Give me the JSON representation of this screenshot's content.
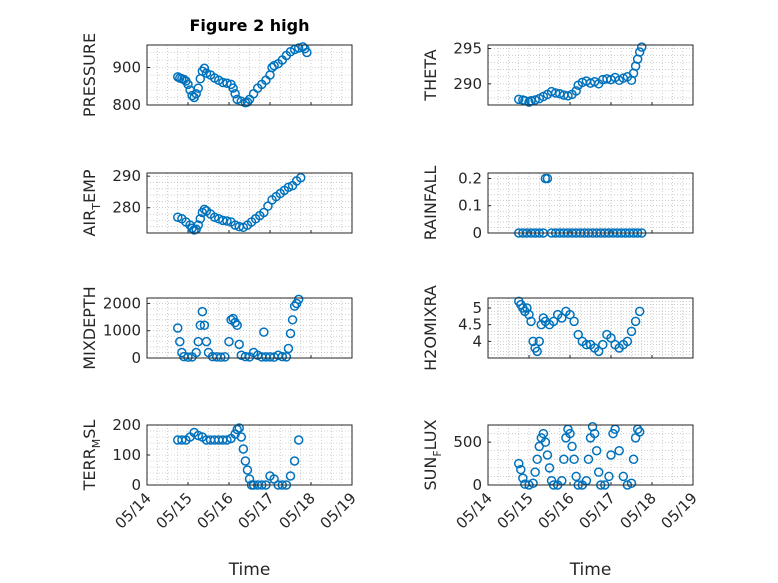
{
  "figure_title": "Figure 2 high",
  "marker_color": "#0072bd",
  "chart_data": [
    {
      "type": "scatter",
      "title": "Figure 2 high",
      "ylabel": "PRESSURE",
      "ylim": [
        800,
        960
      ],
      "yticks": [
        800,
        900
      ],
      "xlim": [
        "05/14",
        "05/19"
      ],
      "xticks": [
        "05/14",
        "05/15",
        "05/16",
        "05/17",
        "05/18",
        "05/19"
      ],
      "show_xticklabels": false,
      "xlabel": "",
      "grid": true,
      "points": [
        [
          14.75,
          875
        ],
        [
          14.8,
          872
        ],
        [
          14.85,
          870
        ],
        [
          14.9,
          868
        ],
        [
          14.95,
          864
        ],
        [
          15.0,
          855
        ],
        [
          15.05,
          840
        ],
        [
          15.1,
          825
        ],
        [
          15.15,
          820
        ],
        [
          15.2,
          830
        ],
        [
          15.25,
          845
        ],
        [
          15.3,
          870
        ],
        [
          15.35,
          890
        ],
        [
          15.4,
          898
        ],
        [
          15.45,
          885
        ],
        [
          15.55,
          880
        ],
        [
          15.65,
          872
        ],
        [
          15.75,
          866
        ],
        [
          15.85,
          860
        ],
        [
          15.95,
          858
        ],
        [
          16.05,
          855
        ],
        [
          16.1,
          845
        ],
        [
          16.15,
          830
        ],
        [
          16.2,
          815
        ],
        [
          16.3,
          810
        ],
        [
          16.4,
          806
        ],
        [
          16.45,
          808
        ],
        [
          16.5,
          815
        ],
        [
          16.6,
          830
        ],
        [
          16.7,
          845
        ],
        [
          16.8,
          855
        ],
        [
          16.9,
          866
        ],
        [
          17.0,
          880
        ],
        [
          17.05,
          900
        ],
        [
          17.1,
          905
        ],
        [
          17.2,
          910
        ],
        [
          17.3,
          920
        ],
        [
          17.4,
          932
        ],
        [
          17.5,
          942
        ],
        [
          17.6,
          948
        ],
        [
          17.7,
          952
        ],
        [
          17.8,
          955
        ],
        [
          17.85,
          950
        ],
        [
          17.9,
          940
        ]
      ]
    },
    {
      "type": "scatter",
      "ylabel": "THETA",
      "ylim": [
        287,
        295.5
      ],
      "yticks": [
        290,
        295
      ],
      "xlim": [
        "05/14",
        "05/19"
      ],
      "xticks": [
        "05/14",
        "05/15",
        "05/16",
        "05/17",
        "05/18",
        "05/19"
      ],
      "show_xticklabels": false,
      "xlabel": "",
      "grid": true,
      "points": [
        [
          14.75,
          287.8
        ],
        [
          14.85,
          287.7
        ],
        [
          14.9,
          287.6
        ],
        [
          15.0,
          287.4
        ],
        [
          15.05,
          287.6
        ],
        [
          15.15,
          287.7
        ],
        [
          15.25,
          287.9
        ],
        [
          15.35,
          288.2
        ],
        [
          15.45,
          288.5
        ],
        [
          15.55,
          288.9
        ],
        [
          15.65,
          288.7
        ],
        [
          15.75,
          288.6
        ],
        [
          15.85,
          288.4
        ],
        [
          15.95,
          288.3
        ],
        [
          16.05,
          288.5
        ],
        [
          16.15,
          289.0
        ],
        [
          16.2,
          289.8
        ],
        [
          16.3,
          290.2
        ],
        [
          16.4,
          290.4
        ],
        [
          16.5,
          290.1
        ],
        [
          16.6,
          290.3
        ],
        [
          16.7,
          290.0
        ],
        [
          16.8,
          290.6
        ],
        [
          16.9,
          290.7
        ],
        [
          17.0,
          290.6
        ],
        [
          17.1,
          290.9
        ],
        [
          17.2,
          290.5
        ],
        [
          17.3,
          290.8
        ],
        [
          17.4,
          291.0
        ],
        [
          17.5,
          290.5
        ],
        [
          17.55,
          291.5
        ],
        [
          17.6,
          292.5
        ],
        [
          17.65,
          293.5
        ],
        [
          17.7,
          294.5
        ],
        [
          17.75,
          295.2
        ]
      ]
    },
    {
      "type": "scatter",
      "ylabel": "AIR_TEMP",
      "ylim": [
        272,
        291
      ],
      "yticks": [
        280,
        290
      ],
      "xlim": [
        "05/14",
        "05/19"
      ],
      "xticks": [
        "05/14",
        "05/15",
        "05/16",
        "05/17",
        "05/18",
        "05/19"
      ],
      "show_xticklabels": false,
      "xlabel": "",
      "grid": true,
      "points": [
        [
          14.75,
          277
        ],
        [
          14.85,
          276.5
        ],
        [
          14.95,
          275.5
        ],
        [
          15.05,
          274.5
        ],
        [
          15.1,
          273.5
        ],
        [
          15.15,
          273
        ],
        [
          15.2,
          273.2
        ],
        [
          15.25,
          274.5
        ],
        [
          15.3,
          276.5
        ],
        [
          15.35,
          278.5
        ],
        [
          15.4,
          279.5
        ],
        [
          15.45,
          279
        ],
        [
          15.55,
          278
        ],
        [
          15.65,
          277
        ],
        [
          15.75,
          276.5
        ],
        [
          15.85,
          276
        ],
        [
          15.95,
          275.8
        ],
        [
          16.05,
          275.5
        ],
        [
          16.15,
          274.5
        ],
        [
          16.25,
          274
        ],
        [
          16.35,
          273.8
        ],
        [
          16.45,
          274.5
        ],
        [
          16.55,
          275.5
        ],
        [
          16.65,
          276.5
        ],
        [
          16.75,
          277.5
        ],
        [
          16.85,
          278.5
        ],
        [
          16.95,
          280.5
        ],
        [
          17.05,
          282.5
        ],
        [
          17.15,
          283.5
        ],
        [
          17.25,
          284.5
        ],
        [
          17.35,
          285.5
        ],
        [
          17.45,
          286.5
        ],
        [
          17.55,
          287
        ],
        [
          17.65,
          288.5
        ],
        [
          17.75,
          289.5
        ]
      ]
    },
    {
      "type": "scatter",
      "ylabel": "RAINFALL",
      "ylim": [
        0,
        0.22
      ],
      "yticks": [
        0,
        0.1,
        0.2
      ],
      "xlim": [
        "05/14",
        "05/19"
      ],
      "xticks": [
        "05/14",
        "05/15",
        "05/16",
        "05/17",
        "05/18",
        "05/19"
      ],
      "show_xticklabels": false,
      "xlabel": "",
      "grid": true,
      "points": [
        [
          14.75,
          0
        ],
        [
          14.85,
          0
        ],
        [
          14.95,
          0
        ],
        [
          15.05,
          0
        ],
        [
          15.15,
          0
        ],
        [
          15.25,
          0
        ],
        [
          15.35,
          0
        ],
        [
          15.4,
          0.2
        ],
        [
          15.45,
          0.2
        ],
        [
          15.55,
          0
        ],
        [
          15.65,
          0
        ],
        [
          15.75,
          0
        ],
        [
          15.85,
          0
        ],
        [
          15.95,
          0
        ],
        [
          16.05,
          0
        ],
        [
          16.15,
          0
        ],
        [
          16.25,
          0
        ],
        [
          16.35,
          0
        ],
        [
          16.45,
          0
        ],
        [
          16.55,
          0
        ],
        [
          16.65,
          0
        ],
        [
          16.75,
          0
        ],
        [
          16.85,
          0
        ],
        [
          16.95,
          0
        ],
        [
          17.05,
          0
        ],
        [
          17.15,
          0
        ],
        [
          17.25,
          0
        ],
        [
          17.35,
          0
        ],
        [
          17.45,
          0
        ],
        [
          17.55,
          0
        ],
        [
          17.65,
          0
        ],
        [
          17.75,
          0
        ]
      ]
    },
    {
      "type": "scatter",
      "ylabel": "MIXDEPTH",
      "ylim": [
        0,
        2200
      ],
      "yticks": [
        0,
        1000,
        2000
      ],
      "xlim": [
        "05/14",
        "05/19"
      ],
      "xticks": [
        "05/14",
        "05/15",
        "05/16",
        "05/17",
        "05/18",
        "05/19"
      ],
      "show_xticklabels": false,
      "xlabel": "",
      "grid": true,
      "points": [
        [
          14.75,
          1100
        ],
        [
          14.8,
          600
        ],
        [
          14.85,
          200
        ],
        [
          14.9,
          50
        ],
        [
          15.0,
          30
        ],
        [
          15.1,
          40
        ],
        [
          15.2,
          200
        ],
        [
          15.25,
          600
        ],
        [
          15.3,
          1200
        ],
        [
          15.35,
          1700
        ],
        [
          15.4,
          1200
        ],
        [
          15.45,
          600
        ],
        [
          15.5,
          200
        ],
        [
          15.6,
          50
        ],
        [
          15.7,
          40
        ],
        [
          15.8,
          30
        ],
        [
          15.9,
          40
        ],
        [
          16.0,
          600
        ],
        [
          16.05,
          1400
        ],
        [
          16.1,
          1450
        ],
        [
          16.15,
          1300
        ],
        [
          16.2,
          1200
        ],
        [
          16.25,
          500
        ],
        [
          16.3,
          100
        ],
        [
          16.4,
          50
        ],
        [
          16.5,
          40
        ],
        [
          16.6,
          200
        ],
        [
          16.7,
          100
        ],
        [
          16.8,
          40
        ],
        [
          16.85,
          950
        ],
        [
          16.9,
          40
        ],
        [
          17.0,
          40
        ],
        [
          17.1,
          30
        ],
        [
          17.2,
          100
        ],
        [
          17.3,
          50
        ],
        [
          17.4,
          40
        ],
        [
          17.45,
          350
        ],
        [
          17.5,
          900
        ],
        [
          17.55,
          1400
        ],
        [
          17.6,
          1900
        ],
        [
          17.65,
          2000
        ],
        [
          17.7,
          2150
        ]
      ]
    },
    {
      "type": "scatter",
      "ylabel": "H2OMIXRA",
      "ylim": [
        3.5,
        5.3
      ],
      "yticks": [
        4,
        4.5,
        5
      ],
      "xlim": [
        "05/14",
        "05/19"
      ],
      "xticks": [
        "05/14",
        "05/15",
        "05/16",
        "05/17",
        "05/18",
        "05/19"
      ],
      "show_xticklabels": false,
      "xlabel": "",
      "grid": true,
      "points": [
        [
          14.75,
          5.2
        ],
        [
          14.8,
          5.1
        ],
        [
          14.85,
          5.0
        ],
        [
          14.9,
          4.9
        ],
        [
          14.95,
          5.0
        ],
        [
          15.0,
          4.8
        ],
        [
          15.05,
          4.6
        ],
        [
          15.1,
          4.0
        ],
        [
          15.15,
          3.8
        ],
        [
          15.2,
          3.7
        ],
        [
          15.25,
          4.0
        ],
        [
          15.3,
          4.5
        ],
        [
          15.35,
          4.7
        ],
        [
          15.4,
          4.6
        ],
        [
          15.5,
          4.5
        ],
        [
          15.6,
          4.6
        ],
        [
          15.7,
          4.8
        ],
        [
          15.8,
          4.7
        ],
        [
          15.9,
          4.9
        ],
        [
          16.0,
          4.8
        ],
        [
          16.1,
          4.6
        ],
        [
          16.2,
          4.2
        ],
        [
          16.3,
          4.0
        ],
        [
          16.4,
          3.9
        ],
        [
          16.5,
          3.9
        ],
        [
          16.6,
          3.8
        ],
        [
          16.7,
          3.7
        ],
        [
          16.8,
          3.9
        ],
        [
          16.9,
          4.2
        ],
        [
          17.0,
          4.1
        ],
        [
          17.1,
          3.9
        ],
        [
          17.2,
          3.8
        ],
        [
          17.3,
          3.9
        ],
        [
          17.4,
          4.0
        ],
        [
          17.5,
          4.3
        ],
        [
          17.6,
          4.6
        ],
        [
          17.7,
          4.9
        ]
      ]
    },
    {
      "type": "scatter",
      "ylabel": "TERR_MSL",
      "ylim": [
        0,
        200
      ],
      "yticks": [
        0,
        100,
        200
      ],
      "xlim": [
        "05/14",
        "05/19"
      ],
      "xticks": [
        "05/14",
        "05/15",
        "05/16",
        "05/17",
        "05/18",
        "05/19"
      ],
      "show_xticklabels": true,
      "xlabel": "Time",
      "grid": true,
      "points": [
        [
          14.75,
          150
        ],
        [
          14.85,
          150
        ],
        [
          14.95,
          150
        ],
        [
          15.05,
          160
        ],
        [
          15.15,
          175
        ],
        [
          15.25,
          165
        ],
        [
          15.35,
          160
        ],
        [
          15.45,
          150
        ],
        [
          15.55,
          150
        ],
        [
          15.65,
          150
        ],
        [
          15.75,
          150
        ],
        [
          15.85,
          150
        ],
        [
          15.95,
          150
        ],
        [
          16.05,
          155
        ],
        [
          16.15,
          170
        ],
        [
          16.2,
          185
        ],
        [
          16.25,
          190
        ],
        [
          16.3,
          160
        ],
        [
          16.35,
          120
        ],
        [
          16.4,
          80
        ],
        [
          16.45,
          50
        ],
        [
          16.5,
          20
        ],
        [
          16.55,
          0
        ],
        [
          16.6,
          0
        ],
        [
          16.7,
          0
        ],
        [
          16.8,
          0
        ],
        [
          16.9,
          0
        ],
        [
          17.0,
          30
        ],
        [
          17.1,
          20
        ],
        [
          17.2,
          0
        ],
        [
          17.3,
          0
        ],
        [
          17.4,
          0
        ],
        [
          17.5,
          30
        ],
        [
          17.6,
          80
        ],
        [
          17.7,
          150
        ]
      ]
    },
    {
      "type": "scatter",
      "ylabel": "SUN_FLUX",
      "ylim": [
        0,
        700
      ],
      "yticks": [
        0,
        500
      ],
      "xlim": [
        "05/14",
        "05/19"
      ],
      "xticks": [
        "05/14",
        "05/15",
        "05/16",
        "05/17",
        "05/18",
        "05/19"
      ],
      "show_xticklabels": true,
      "xlabel": "Time",
      "grid": true,
      "points": [
        [
          14.75,
          250
        ],
        [
          14.8,
          180
        ],
        [
          14.85,
          80
        ],
        [
          14.9,
          10
        ],
        [
          15.0,
          0
        ],
        [
          15.1,
          20
        ],
        [
          15.15,
          150
        ],
        [
          15.2,
          300
        ],
        [
          15.25,
          450
        ],
        [
          15.3,
          550
        ],
        [
          15.35,
          600
        ],
        [
          15.4,
          500
        ],
        [
          15.45,
          350
        ],
        [
          15.5,
          200
        ],
        [
          15.55,
          50
        ],
        [
          15.6,
          0
        ],
        [
          15.7,
          0
        ],
        [
          15.8,
          50
        ],
        [
          15.85,
          300
        ],
        [
          15.9,
          550
        ],
        [
          15.95,
          650
        ],
        [
          16.0,
          600
        ],
        [
          16.05,
          450
        ],
        [
          16.1,
          300
        ],
        [
          16.15,
          100
        ],
        [
          16.2,
          0
        ],
        [
          16.3,
          0
        ],
        [
          16.4,
          50
        ],
        [
          16.45,
          300
        ],
        [
          16.5,
          550
        ],
        [
          16.55,
          680
        ],
        [
          16.6,
          600
        ],
        [
          16.65,
          400
        ],
        [
          16.7,
          150
        ],
        [
          16.75,
          0
        ],
        [
          16.85,
          0
        ],
        [
          16.95,
          100
        ],
        [
          17.0,
          350
        ],
        [
          17.05,
          600
        ],
        [
          17.1,
          650
        ],
        [
          17.2,
          400
        ],
        [
          17.3,
          100
        ],
        [
          17.4,
          0
        ],
        [
          17.5,
          20
        ],
        [
          17.55,
          300
        ],
        [
          17.6,
          550
        ],
        [
          17.65,
          650
        ],
        [
          17.7,
          620
        ]
      ]
    }
  ]
}
